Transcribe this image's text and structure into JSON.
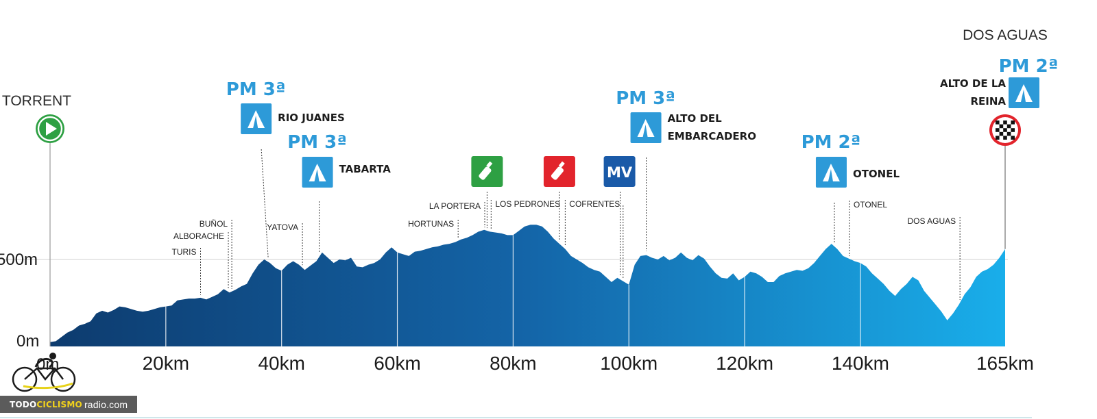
{
  "chart_data": {
    "type": "area",
    "title": "",
    "xlabel": "",
    "ylabel": "",
    "xlim": [
      0,
      165
    ],
    "x_ticks": [
      {
        "value": 20,
        "label": "20km"
      },
      {
        "value": 40,
        "label": "40km"
      },
      {
        "value": 60,
        "label": "60km"
      },
      {
        "value": 80,
        "label": "80km"
      },
      {
        "value": 100,
        "label": "100km"
      },
      {
        "value": 120,
        "label": "120km"
      },
      {
        "value": 140,
        "label": "140km"
      },
      {
        "value": 165,
        "label": "165km"
      }
    ],
    "x_origin_label": "0m",
    "y_labels": [
      {
        "value": 0,
        "label": "0m"
      },
      {
        "value": 500,
        "label": "500m"
      }
    ],
    "ylim": [
      0,
      1000
    ],
    "colors": {
      "dark": "#0d3b6e",
      "mid": "#1465a8",
      "light": "#19aeea",
      "divider": "#ffffff",
      "pm": "#2d9ad8",
      "feed": "#2ea043",
      "red": "#e2242c",
      "mv": "#1a5aa8"
    },
    "points": [
      [
        0,
        25
      ],
      [
        1,
        30
      ],
      [
        2,
        55
      ],
      [
        3,
        80
      ],
      [
        4,
        95
      ],
      [
        5,
        120
      ],
      [
        6,
        130
      ],
      [
        7,
        145
      ],
      [
        8,
        190
      ],
      [
        9,
        205
      ],
      [
        10,
        195
      ],
      [
        11,
        210
      ],
      [
        12,
        230
      ],
      [
        13,
        225
      ],
      [
        14,
        215
      ],
      [
        15,
        205
      ],
      [
        16,
        200
      ],
      [
        17,
        205
      ],
      [
        18,
        215
      ],
      [
        19,
        225
      ],
      [
        20,
        230
      ],
      [
        21,
        235
      ],
      [
        22,
        265
      ],
      [
        23,
        270
      ],
      [
        24,
        275
      ],
      [
        25,
        275
      ],
      [
        26,
        280
      ],
      [
        27,
        270
      ],
      [
        28,
        285
      ],
      [
        29,
        300
      ],
      [
        30,
        330
      ],
      [
        31,
        310
      ],
      [
        32,
        325
      ],
      [
        33,
        345
      ],
      [
        34,
        360
      ],
      [
        35,
        420
      ],
      [
        36,
        470
      ],
      [
        37,
        500
      ],
      [
        38,
        480
      ],
      [
        39,
        450
      ],
      [
        40,
        435
      ],
      [
        41,
        470
      ],
      [
        42,
        490
      ],
      [
        43,
        470
      ],
      [
        44,
        440
      ],
      [
        45,
        465
      ],
      [
        46,
        490
      ],
      [
        47,
        540
      ],
      [
        48,
        510
      ],
      [
        49,
        480
      ],
      [
        50,
        500
      ],
      [
        51,
        495
      ],
      [
        52,
        510
      ],
      [
        53,
        460
      ],
      [
        54,
        455
      ],
      [
        55,
        470
      ],
      [
        56,
        480
      ],
      [
        57,
        500
      ],
      [
        58,
        540
      ],
      [
        59,
        570
      ],
      [
        60,
        540
      ],
      [
        61,
        530
      ],
      [
        62,
        520
      ],
      [
        63,
        545
      ],
      [
        64,
        550
      ],
      [
        65,
        560
      ],
      [
        66,
        570
      ],
      [
        67,
        575
      ],
      [
        68,
        585
      ],
      [
        69,
        590
      ],
      [
        70,
        600
      ],
      [
        71,
        615
      ],
      [
        72,
        625
      ],
      [
        73,
        640
      ],
      [
        74,
        660
      ],
      [
        75,
        670
      ],
      [
        76,
        660
      ],
      [
        77,
        655
      ],
      [
        78,
        650
      ],
      [
        79,
        640
      ],
      [
        80,
        640
      ],
      [
        81,
        665
      ],
      [
        82,
        690
      ],
      [
        83,
        700
      ],
      [
        84,
        700
      ],
      [
        85,
        690
      ],
      [
        86,
        660
      ],
      [
        87,
        620
      ],
      [
        88,
        590
      ],
      [
        89,
        560
      ],
      [
        90,
        520
      ],
      [
        91,
        500
      ],
      [
        92,
        480
      ],
      [
        93,
        455
      ],
      [
        94,
        440
      ],
      [
        95,
        430
      ],
      [
        96,
        400
      ],
      [
        97,
        370
      ],
      [
        98,
        395
      ],
      [
        99,
        375
      ],
      [
        100,
        355
      ],
      [
        101,
        470
      ],
      [
        102,
        520
      ],
      [
        103,
        525
      ],
      [
        104,
        510
      ],
      [
        105,
        500
      ],
      [
        106,
        520
      ],
      [
        107,
        495
      ],
      [
        108,
        510
      ],
      [
        109,
        540
      ],
      [
        110,
        510
      ],
      [
        111,
        495
      ],
      [
        112,
        525
      ],
      [
        113,
        505
      ],
      [
        114,
        460
      ],
      [
        115,
        420
      ],
      [
        116,
        395
      ],
      [
        117,
        390
      ],
      [
        118,
        420
      ],
      [
        119,
        380
      ],
      [
        120,
        400
      ],
      [
        121,
        430
      ],
      [
        122,
        420
      ],
      [
        123,
        400
      ],
      [
        124,
        370
      ],
      [
        125,
        370
      ],
      [
        126,
        405
      ],
      [
        127,
        420
      ],
      [
        128,
        430
      ],
      [
        129,
        440
      ],
      [
        130,
        435
      ],
      [
        131,
        450
      ],
      [
        132,
        480
      ],
      [
        133,
        520
      ],
      [
        134,
        560
      ],
      [
        135,
        590
      ],
      [
        136,
        560
      ],
      [
        137,
        520
      ],
      [
        138,
        505
      ],
      [
        139,
        490
      ],
      [
        140,
        480
      ],
      [
        141,
        460
      ],
      [
        142,
        420
      ],
      [
        143,
        390
      ],
      [
        144,
        360
      ],
      [
        145,
        320
      ],
      [
        146,
        290
      ],
      [
        147,
        330
      ],
      [
        148,
        360
      ],
      [
        149,
        400
      ],
      [
        150,
        380
      ],
      [
        151,
        320
      ],
      [
        152,
        280
      ],
      [
        153,
        240
      ],
      [
        154,
        200
      ],
      [
        155,
        150
      ],
      [
        156,
        190
      ],
      [
        157,
        240
      ],
      [
        158,
        300
      ],
      [
        159,
        340
      ],
      [
        160,
        400
      ],
      [
        161,
        430
      ],
      [
        162,
        445
      ],
      [
        163,
        470
      ],
      [
        164,
        510
      ],
      [
        165,
        560
      ]
    ],
    "dividers": [
      0,
      20,
      40,
      60,
      80,
      100,
      120,
      140,
      165
    ],
    "start": {
      "x": 0,
      "label": "TORRENT"
    },
    "finish": {
      "x": 165,
      "label": "DOS AGUAS"
    },
    "towns": [
      {
        "x": 26.0,
        "label": "TURIS"
      },
      {
        "x": 30.8,
        "label": "ALBORACHE"
      },
      {
        "x": 31.4,
        "label": "BUÑOL"
      },
      {
        "x": 43.6,
        "label": "YATOVA"
      },
      {
        "x": 70.5,
        "label": "HORTUNAS"
      },
      {
        "x": 75.1,
        "label": "LA PORTERA"
      },
      {
        "x": 76.2,
        "label": "LOS PEDRONES"
      },
      {
        "x": 89.0,
        "label": "COFRENTES"
      },
      {
        "x": 99.0,
        "label": "OTONEL"
      },
      {
        "x": 138.1,
        "label": "OTONEL"
      },
      {
        "x": 157.2,
        "label": "DOS AGUAS"
      }
    ],
    "climbs": [
      {
        "x": 36.5,
        "category": "PM 3ª",
        "name": [
          "RIO JUANES"
        ]
      },
      {
        "x": 46.5,
        "category": "PM 3ª",
        "name": [
          "TABARTA"
        ]
      },
      {
        "x": 103.0,
        "category": "PM 3ª",
        "name": [
          "ALTO DEL",
          "EMBARCADERO"
        ]
      },
      {
        "x": 135.5,
        "category": "PM 2ª",
        "name": [
          "OTONEL"
        ]
      },
      {
        "x": 165.0,
        "category": "PM 2ª",
        "name": [
          "ALTO DE LA",
          "REINA"
        ]
      }
    ],
    "feed_zones": [
      {
        "x": 75.5,
        "type": "green"
      },
      {
        "x": 88.0,
        "type": "red"
      }
    ],
    "mv": {
      "x": 98.5,
      "label": "MV"
    }
  },
  "brand": {
    "part1": "TODO",
    "part2": "CICLISMO",
    "part3": "radio.com"
  }
}
